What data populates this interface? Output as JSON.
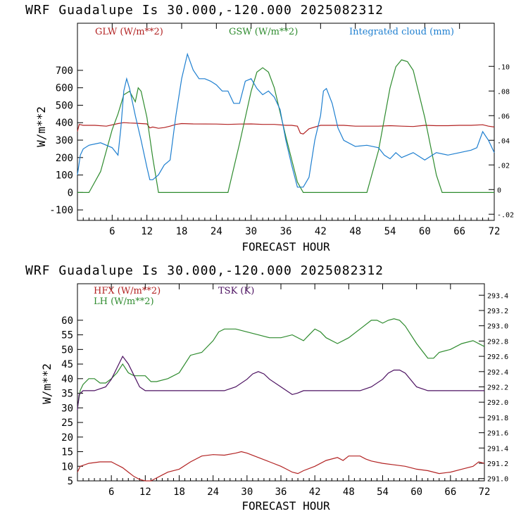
{
  "charts": [
    {
      "title": "WRF  Guadalupe Is  30.000,-120.000  2025082312",
      "xlabel": "FORECAST HOUR",
      "ylabel": "W/m**2",
      "legend": [
        {
          "label": "GLW (W/m**2)",
          "color": "#b22222"
        },
        {
          "label": "GSW (W/m**2)",
          "color": "#2e8b2e"
        },
        {
          "label": "Integrated cloud (mm)",
          "color": "#1e7fd0"
        }
      ]
    },
    {
      "title": "WRF  Guadalupe Is  30.000,-120.000  2025082312",
      "xlabel": "FORECAST HOUR",
      "ylabel": "W/m**2",
      "legend": [
        {
          "label": "HFX (W/m**2)",
          "color": "#b22222"
        },
        {
          "label": "LH  (W/m**2)",
          "color": "#2e8b2e"
        },
        {
          "label": "TSK (K)",
          "color": "#4b1060"
        }
      ]
    }
  ],
  "chart_data": [
    {
      "type": "line",
      "x_range": [
        0,
        72
      ],
      "x_ticks": [
        "6",
        "12",
        "18",
        "24",
        "30",
        "36",
        "42",
        "48",
        "54",
        "60",
        "66",
        "72"
      ],
      "y_left_ticks": [
        "-100",
        "0",
        "100",
        "200",
        "300",
        "400",
        "500",
        "600",
        "700"
      ],
      "y_left_range": [
        -160,
        970
      ],
      "y_right_ticks": [
        "-.02",
        "0",
        ".02",
        ".04",
        ".06",
        ".08",
        ".10"
      ],
      "y_right_range": [
        -0.025,
        0.135
      ],
      "series": [
        {
          "name": "GLW (W/m**2)",
          "axis": "left",
          "color": "#b22222",
          "x": [
            0,
            0.3,
            1,
            3,
            5,
            7,
            8,
            9,
            10,
            11,
            12,
            12.5,
            13,
            14,
            15,
            16,
            17,
            18,
            20,
            24,
            26,
            28,
            30,
            32,
            34,
            36,
            37,
            38,
            38.5,
            39,
            40,
            42,
            46,
            48,
            50,
            52,
            54,
            56,
            58,
            60,
            62,
            64,
            66,
            68,
            70,
            71,
            72
          ],
          "y": [
            350,
            390,
            385,
            385,
            380,
            395,
            400,
            398,
            397,
            395,
            393,
            370,
            375,
            368,
            372,
            380,
            390,
            395,
            393,
            392,
            390,
            392,
            393,
            390,
            390,
            385,
            385,
            380,
            340,
            335,
            365,
            385,
            385,
            380,
            380,
            380,
            383,
            380,
            378,
            385,
            383,
            383,
            385,
            385,
            388,
            380,
            375
          ]
        },
        {
          "name": "GSW (W/m**2)",
          "axis": "left",
          "color": "#2e8b2e",
          "x": [
            0,
            2,
            4,
            6,
            7,
            8,
            9,
            10,
            10.5,
            11,
            12,
            13,
            14,
            26,
            28,
            30,
            31,
            32,
            33,
            34,
            36,
            38,
            39,
            50,
            52,
            54,
            55,
            56,
            57,
            58,
            60,
            62,
            63,
            72
          ],
          "y": [
            0,
            0,
            120,
            360,
            450,
            560,
            580,
            520,
            600,
            580,
            430,
            200,
            0,
            0,
            280,
            580,
            690,
            715,
            690,
            600,
            320,
            60,
            0,
            0,
            240,
            600,
            720,
            760,
            750,
            700,
            430,
            100,
            0,
            0
          ]
        },
        {
          "name": "Integrated cloud (mm)",
          "axis": "right",
          "color": "#1e7fd0",
          "x": [
            0,
            0.5,
            1,
            2,
            4,
            6,
            7,
            7.5,
            8,
            8.5,
            9,
            10,
            11,
            12,
            12.5,
            13,
            14,
            15,
            16,
            17,
            18,
            19,
            20,
            21,
            22,
            23,
            24,
            25,
            26,
            27,
            28,
            29,
            30,
            31,
            32,
            33,
            34,
            35,
            36,
            37,
            38,
            39,
            40,
            41,
            42,
            42.5,
            43,
            44,
            45,
            46,
            48,
            50,
            52,
            53,
            54,
            55,
            56,
            58,
            60,
            62,
            64,
            66,
            68,
            69,
            70,
            71,
            72
          ],
          "y": [
            0.012,
            0.028,
            0.033,
            0.036,
            0.038,
            0.034,
            0.028,
            0.05,
            0.08,
            0.09,
            0.082,
            0.06,
            0.04,
            0.018,
            0.008,
            0.008,
            0.012,
            0.02,
            0.024,
            0.06,
            0.09,
            0.11,
            0.097,
            0.09,
            0.09,
            0.088,
            0.085,
            0.08,
            0.08,
            0.07,
            0.07,
            0.088,
            0.09,
            0.082,
            0.077,
            0.08,
            0.075,
            0.065,
            0.04,
            0.02,
            0.002,
            0.002,
            0.01,
            0.04,
            0.06,
            0.08,
            0.082,
            0.07,
            0.05,
            0.04,
            0.035,
            0.036,
            0.034,
            0.028,
            0.025,
            0.03,
            0.026,
            0.03,
            0.024,
            0.03,
            0.028,
            0.03,
            0.032,
            0.034,
            0.047,
            0.04,
            0.03
          ]
        }
      ]
    },
    {
      "type": "line",
      "x_range": [
        0,
        72
      ],
      "x_ticks": [
        "6",
        "12",
        "18",
        "24",
        "30",
        "36",
        "42",
        "48",
        "54",
        "60",
        "66",
        "72"
      ],
      "y_left_ticks": [
        "5",
        "10",
        "15",
        "20",
        "25",
        "30",
        "35",
        "40",
        "45",
        "50",
        "55",
        "60"
      ],
      "y_left_range": [
        5,
        72.5
      ],
      "y_right_ticks": [
        "291.0",
        "291.2",
        "291.4",
        "291.6",
        "291.8",
        "292.0",
        "292.2",
        "292.4",
        "292.6",
        "292.8",
        "293.0",
        "293.2",
        "293.4"
      ],
      "y_right_range": [
        290.97,
        293.55
      ],
      "series": [
        {
          "name": "HFX (W/m**2)",
          "axis": "left",
          "color": "#b22222",
          "x": [
            0,
            0.5,
            2,
            4,
            6,
            6.5,
            8,
            9,
            10,
            11,
            12,
            12.5,
            13,
            14,
            15,
            16,
            18,
            20,
            22,
            24,
            26,
            28,
            29,
            30,
            32,
            34,
            36,
            37,
            38,
            39,
            40,
            42,
            44,
            46,
            47,
            48,
            50,
            51,
            52,
            54,
            56,
            58,
            60,
            62,
            64,
            66,
            68,
            70,
            71,
            72
          ],
          "y": [
            8,
            10,
            11,
            11.5,
            11.5,
            11,
            9.5,
            8,
            6.5,
            5.5,
            4.5,
            4,
            5,
            6,
            7,
            8,
            9,
            11.5,
            13.5,
            14,
            13.8,
            14.5,
            15,
            14.5,
            13,
            11.5,
            10,
            9,
            8,
            7.5,
            8.5,
            10,
            12,
            13,
            12,
            13.5,
            13.5,
            12.5,
            11.8,
            11,
            10.5,
            10,
            9,
            8.5,
            7.5,
            8,
            9,
            10,
            11.5,
            11
          ]
        },
        {
          "name": "LH  (W/m**2)",
          "axis": "left",
          "color": "#2e8b2e",
          "x": [
            0,
            0.5,
            1,
            2,
            3,
            4,
            5,
            6,
            7,
            8,
            9,
            10,
            11,
            12,
            13,
            14,
            16,
            18,
            20,
            22,
            24,
            25,
            26,
            28,
            30,
            32,
            34,
            36,
            38,
            40,
            41,
            42,
            43,
            44,
            46,
            48,
            50,
            52,
            53,
            54,
            55,
            56,
            57,
            58,
            60,
            62,
            63,
            64,
            66,
            68,
            70,
            72
          ],
          "y": [
            30,
            36,
            38,
            40,
            40,
            38.5,
            38.5,
            40,
            42,
            45,
            42,
            41,
            41,
            41,
            39,
            39,
            40,
            42,
            48,
            49,
            53,
            56,
            57,
            57,
            56,
            55,
            54,
            54,
            55,
            53,
            55,
            57,
            56,
            54,
            52,
            54,
            57,
            60,
            60,
            59,
            60,
            60.5,
            60,
            58,
            52,
            47,
            47,
            49,
            50,
            52,
            53,
            51
          ]
        },
        {
          "name": "TSK (K)",
          "axis": "right",
          "color": "#4b1060",
          "x": [
            0,
            0.3,
            1,
            3,
            5,
            6,
            7,
            8,
            9,
            10,
            11,
            12,
            14,
            24,
            26,
            28,
            30,
            31,
            32,
            33,
            34,
            36,
            38,
            39,
            40,
            42,
            48,
            50,
            52,
            54,
            55,
            56,
            57,
            58,
            60,
            62,
            72
          ],
          "y": [
            291.9,
            292.1,
            292.15,
            292.15,
            292.2,
            292.3,
            292.45,
            292.6,
            292.5,
            292.35,
            292.2,
            292.15,
            292.15,
            292.15,
            292.15,
            292.2,
            292.3,
            292.37,
            292.4,
            292.37,
            292.3,
            292.2,
            292.1,
            292.12,
            292.15,
            292.15,
            292.15,
            292.15,
            292.2,
            292.3,
            292.38,
            292.42,
            292.42,
            292.38,
            292.2,
            292.15,
            292.15
          ]
        }
      ]
    }
  ]
}
